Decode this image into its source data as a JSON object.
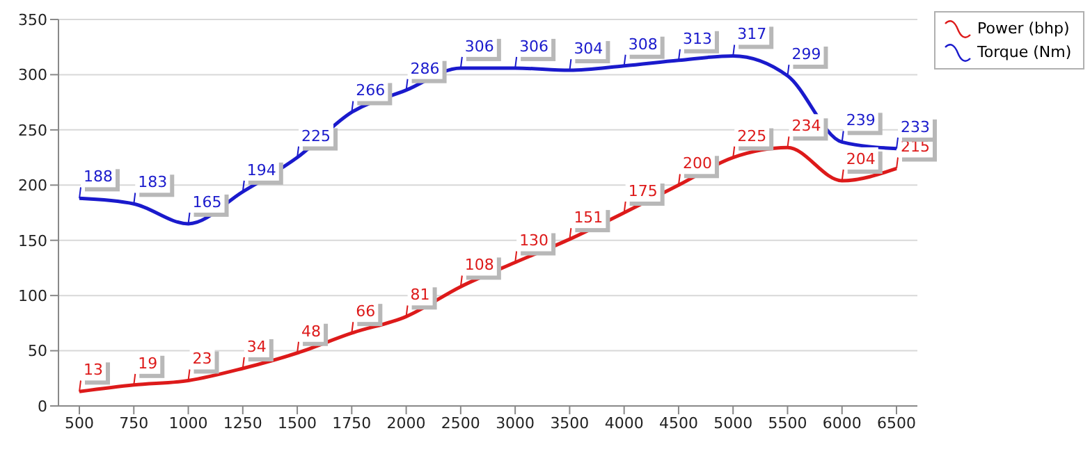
{
  "chart_data": {
    "type": "line",
    "categories": [
      "500",
      "750",
      "1000",
      "1250",
      "1500",
      "1750",
      "2000",
      "2500",
      "3000",
      "3500",
      "4000",
      "4500",
      "5000",
      "5500",
      "6000",
      "6500"
    ],
    "series": [
      {
        "name": "Power (bhp)",
        "color": "#dd1a1a",
        "values": [
          13,
          19,
          23,
          34,
          48,
          66,
          81,
          108,
          130,
          151,
          175,
          200,
          225,
          234,
          204,
          215
        ]
      },
      {
        "name": "Torque (Nm)",
        "color": "#1a1acc",
        "values": [
          188,
          183,
          165,
          194,
          225,
          266,
          286,
          306,
          306,
          304,
          308,
          313,
          317,
          299,
          239,
          233
        ]
      }
    ],
    "ylim": [
      0,
      350
    ],
    "yticks": [
      0,
      50,
      100,
      150,
      200,
      250,
      300,
      350
    ],
    "grid": "y",
    "legend": "top right",
    "data_labels": true,
    "marker": "none",
    "line_style": "solid"
  }
}
